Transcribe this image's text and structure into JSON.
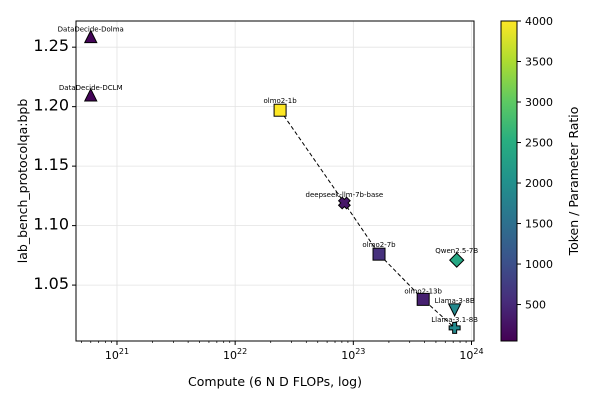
{
  "chart_data": {
    "type": "scatter",
    "title": "",
    "xlabel": "Compute (6 N D FLOPs, log)",
    "ylabel": "lab_bench_protocolqa:bpb",
    "xscale": "log",
    "xlim": [
      4.5e+20,
      1.05e+24
    ],
    "ylim": [
      1.003,
      1.272
    ],
    "x_ticks": [
      {
        "value": 1e+21,
        "base": "10",
        "exp": "21"
      },
      {
        "value": 1e+22,
        "base": "10",
        "exp": "22"
      },
      {
        "value": 1e+23,
        "base": "10",
        "exp": "23"
      },
      {
        "value": 1e+24,
        "base": "10",
        "exp": "24"
      }
    ],
    "y_ticks": [
      "1.05",
      "1.10",
      "1.15",
      "1.20",
      "1.25"
    ],
    "grid": true,
    "colorbar": {
      "label": "Token / Parameter Ratio",
      "range": [
        50,
        4000
      ],
      "ticks": [
        "500",
        "1000",
        "1500",
        "2000",
        "2500",
        "3000",
        "3500",
        "4000"
      ],
      "colormap": "viridis"
    },
    "points": [
      {
        "name": "DataDecide-Dolma",
        "x": 6e+20,
        "y": 1.258,
        "ratio": 100,
        "marker": "triangle-up",
        "label_dx": 0,
        "label_dy": -6,
        "anchor": "middle"
      },
      {
        "name": "DataDecide-DCLM",
        "x": 6e+20,
        "y": 1.209,
        "ratio": 100,
        "marker": "triangle-up",
        "label_dx": 0,
        "label_dy": -6,
        "anchor": "middle"
      },
      {
        "name": "olmo2-1b",
        "x": 2.4e+22,
        "y": 1.197,
        "ratio": 4000,
        "marker": "square",
        "label_dx": 0,
        "label_dy": -7,
        "anchor": "middle"
      },
      {
        "name": "deepseek-llm-7b-base",
        "x": 8.4e+22,
        "y": 1.119,
        "ratio": 300,
        "marker": "x",
        "label_dx": 0,
        "label_dy": -6,
        "anchor": "middle"
      },
      {
        "name": "olmo2-7b",
        "x": 1.65e+23,
        "y": 1.076,
        "ratio": 600,
        "marker": "square",
        "label_dx": 0,
        "label_dy": -7,
        "anchor": "middle"
      },
      {
        "name": "olmo2-13b",
        "x": 3.9e+23,
        "y": 1.038,
        "ratio": 400,
        "marker": "square",
        "label_dx": 0,
        "label_dy": -6,
        "anchor": "middle"
      },
      {
        "name": "Qwen2.5-7B",
        "x": 7.5e+23,
        "y": 1.071,
        "ratio": 2400,
        "marker": "diamond",
        "label_dx": 0,
        "label_dy": -7,
        "anchor": "middle"
      },
      {
        "name": "Llama-3-8B",
        "x": 7.2e+23,
        "y": 1.03,
        "ratio": 1900,
        "marker": "triangle-down",
        "label_dx": 0,
        "label_dy": -6,
        "anchor": "middle"
      },
      {
        "name": "Llama-3.1-8B",
        "x": 7.2e+23,
        "y": 1.014,
        "ratio": 1900,
        "marker": "plus",
        "label_dx": 0,
        "label_dy": -6,
        "anchor": "middle"
      }
    ],
    "frontier": [
      "olmo2-1b",
      "deepseek-llm-7b-base",
      "olmo2-7b",
      "olmo2-13b",
      "Llama-3.1-8B"
    ]
  }
}
